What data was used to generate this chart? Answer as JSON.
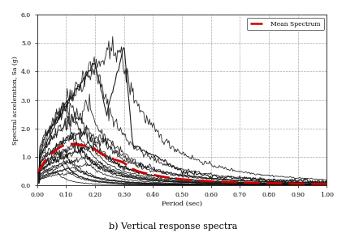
{
  "title": "",
  "xlabel": "Period (sec)",
  "ylabel": "Spectral acceleration, Sa (g)",
  "xlim": [
    0.0,
    1.0
  ],
  "ylim": [
    0.0,
    6.0
  ],
  "xticks": [
    0.0,
    0.1,
    0.2,
    0.3,
    0.4,
    0.5,
    0.6,
    0.7,
    0.8,
    0.9,
    1.0
  ],
  "yticks": [
    0.0,
    1.0,
    2.0,
    3.0,
    4.0,
    5.0,
    6.0
  ],
  "caption": "b) Vertical response spectra",
  "background_color": "#ffffff",
  "grid_color": "#888888",
  "line_color": "#111111",
  "mean_color": "#cc0000",
  "legend_label": "Mean Spectrum",
  "figsize": [
    4.26,
    2.88
  ],
  "dpi": 100
}
